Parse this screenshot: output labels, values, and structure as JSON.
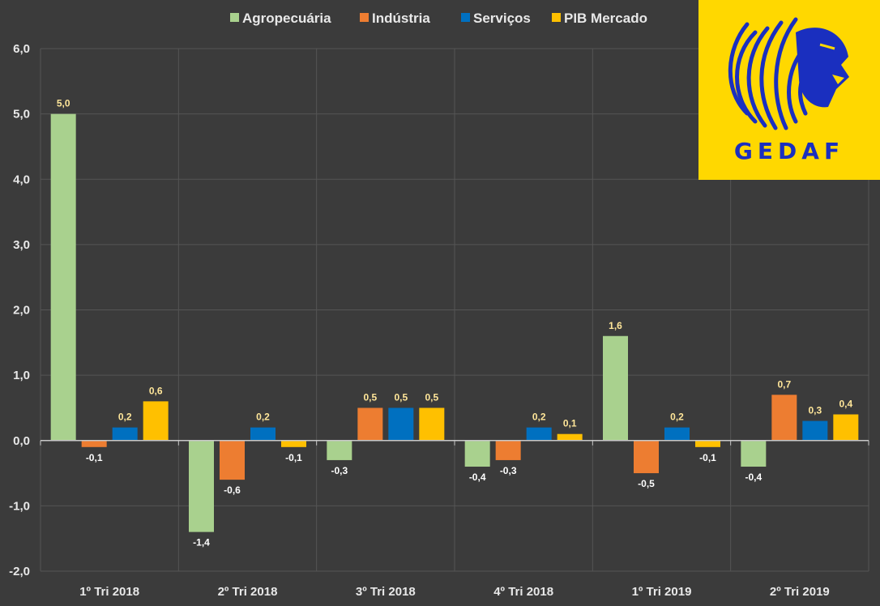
{
  "chart_data": {
    "type": "bar",
    "categories": [
      "1º Tri 2018",
      "2º Tri 2018",
      "3º Tri 2018",
      "4º Tri 2018",
      "1º Tri 2019",
      "2º Tri 2019"
    ],
    "series": [
      {
        "name": "Agropecuária",
        "color": "#a9d18e",
        "values": [
          5.0,
          -1.4,
          -0.3,
          -0.4,
          1.6,
          -0.4
        ]
      },
      {
        "name": "Indústria",
        "color": "#ed7d31",
        "values": [
          -0.1,
          -0.6,
          0.5,
          -0.3,
          -0.5,
          0.7
        ]
      },
      {
        "name": "Serviços",
        "color": "#0070c0",
        "values": [
          0.2,
          0.2,
          0.5,
          0.2,
          0.2,
          0.3
        ]
      },
      {
        "name": "PIB Mercado",
        "color": "#ffc000",
        "values": [
          0.6,
          -0.1,
          0.5,
          0.1,
          -0.1,
          0.4
        ]
      }
    ],
    "ylim": [
      -2.0,
      6.0
    ],
    "yticks": [
      -2.0,
      -1.0,
      0.0,
      1.0,
      2.0,
      3.0,
      4.0,
      5.0,
      6.0
    ],
    "grid": true,
    "legend": "top",
    "label_colors": {
      "positive": "#ffe699",
      "negative": "#ffffff"
    },
    "decimal_separator": ","
  },
  "logo": {
    "text": "GEDAF",
    "background": "#ffd800",
    "color": "#1a2fbf",
    "icon": "lion-head-icon"
  }
}
